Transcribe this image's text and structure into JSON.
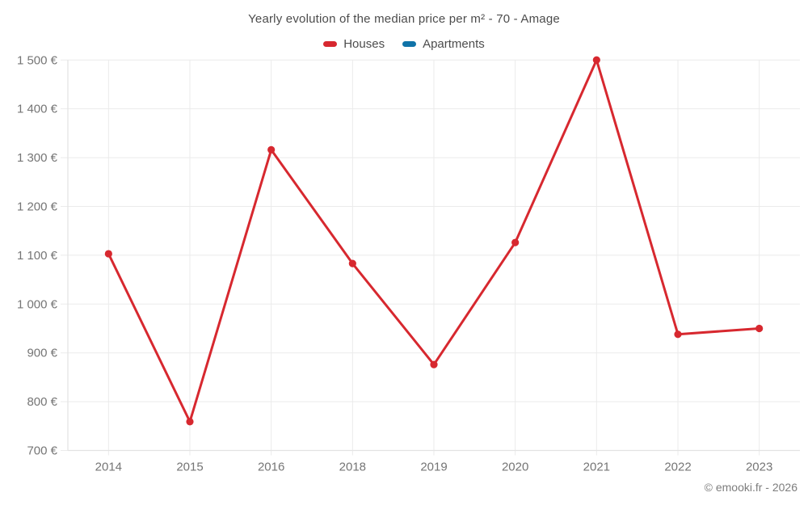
{
  "chart": {
    "title": "Yearly evolution of the median price per m² - 70 - Amage",
    "copyright": "© emooki.fr - 2026"
  },
  "chart_data": {
    "type": "line",
    "title": "Yearly evolution of the median price per m² - 70 - Amage",
    "categories": [
      "2014",
      "2015",
      "2016",
      "2018",
      "2019",
      "2020",
      "2021",
      "2022",
      "2023"
    ],
    "series": [
      {
        "name": "Houses",
        "color": "#d7282f",
        "values": [
          1103,
          759,
          1316,
          1083,
          876,
          1126,
          1500,
          938,
          950
        ]
      },
      {
        "name": "Apartments",
        "color": "#1073a8",
        "values": []
      }
    ],
    "xlabel": "",
    "ylabel": "",
    "ytick_values": [
      700,
      800,
      900,
      1000,
      1100,
      1200,
      1300,
      1400,
      1500
    ],
    "ytick_labels": [
      "700 €",
      "800 €",
      "900 €",
      "1 000 €",
      "1 100 €",
      "1 200 €",
      "1 300 €",
      "1 400 €",
      "1 500 €"
    ],
    "ylim": [
      700,
      1500
    ],
    "grid": true,
    "legend_position": "top",
    "colors": {
      "houses": "#d7282f",
      "apartments": "#1073a8",
      "gridline": "#ebebeb",
      "axis_line": "#e3e3e3",
      "tick_text": "#757575",
      "title_text": "#4c4c4c"
    }
  }
}
